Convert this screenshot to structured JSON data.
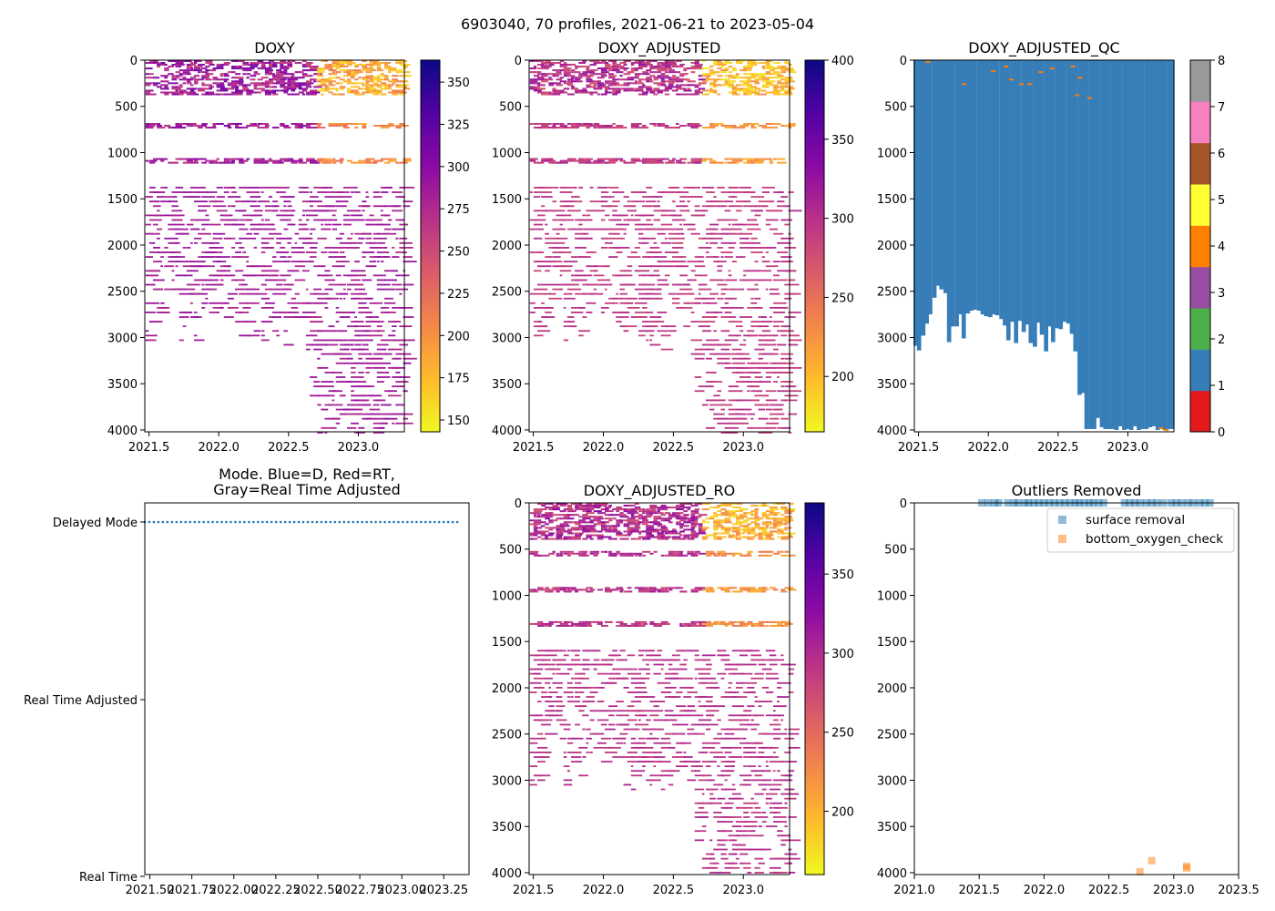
{
  "figure": {
    "suptitle": "6903040, 70 profiles, 2021-06-21 to 2023-05-04"
  },
  "chart_data": [
    {
      "id": "doxy",
      "type": "heatmap",
      "title": "DOXY",
      "colormap": "plasma_r",
      "xlim": [
        2021.47,
        2023.33
      ],
      "ylim": [
        4020,
        0
      ],
      "xticks": [
        2021.5,
        2022.0,
        2022.5,
        2023.0
      ],
      "xtick_labels": [
        "2021.5",
        "2022.0",
        "2022.5",
        "2023.0"
      ],
      "yticks": [
        0,
        500,
        1000,
        1500,
        2000,
        2500,
        3000,
        3500,
        4000
      ],
      "ytick_labels": [
        "0",
        "500",
        "1000",
        "1500",
        "2000",
        "2500",
        "3000",
        "3500",
        "4000"
      ],
      "colorbar": {
        "vmin": 143,
        "vmax": 363,
        "ticks": [
          150,
          175,
          200,
          225,
          250,
          275,
          300,
          325,
          350
        ],
        "tick_labels": [
          "150",
          "175",
          "200",
          "225",
          "250",
          "275",
          "300",
          "325",
          "350"
        ]
      },
      "data_summary": {
        "dense_layers_m": [
          [
            0,
            380
          ],
          [
            680,
            740
          ],
          [
            1060,
            1120
          ]
        ],
        "surface_value_early": 285,
        "surface_value_late": 185,
        "deep_value": 285
      }
    },
    {
      "id": "doxy_adjusted",
      "type": "heatmap",
      "title": "DOXY_ADJUSTED",
      "colormap": "plasma_r",
      "xlim": [
        2021.47,
        2023.33
      ],
      "ylim": [
        4020,
        0
      ],
      "xticks": [
        2021.5,
        2022.0,
        2022.5,
        2023.0
      ],
      "xtick_labels": [
        "2021.5",
        "2022.0",
        "2022.5",
        "2023.0"
      ],
      "yticks": [
        0,
        500,
        1000,
        1500,
        2000,
        2500,
        3000,
        3500,
        4000
      ],
      "ytick_labels": [
        "0",
        "500",
        "1000",
        "1500",
        "2000",
        "2500",
        "3000",
        "3500",
        "4000"
      ],
      "colorbar": {
        "vmin": 165,
        "vmax": 400,
        "ticks": [
          200,
          250,
          300,
          350,
          400
        ],
        "tick_labels": [
          "200",
          "250",
          "300",
          "350",
          "400"
        ]
      },
      "data_summary": {
        "dense_layers_m": [
          [
            0,
            380
          ],
          [
            680,
            740
          ],
          [
            1060,
            1120
          ]
        ],
        "surface_value_early": 300,
        "surface_value_late": 200,
        "deep_value": 295
      }
    },
    {
      "id": "doxy_adjusted_qc",
      "type": "heatmap",
      "title": "DOXY_ADJUSTED_QC",
      "colormap": "Set1 (categorical QC flags 0-8)",
      "xlim": [
        2021.47,
        2023.33
      ],
      "ylim": [
        4020,
        0
      ],
      "xticks": [
        2021.5,
        2022.0,
        2022.5,
        2023.0
      ],
      "xtick_labels": [
        "2021.5",
        "2022.0",
        "2022.5",
        "2023.0"
      ],
      "yticks": [
        0,
        500,
        1000,
        1500,
        2000,
        2500,
        3000,
        3500,
        4000
      ],
      "ytick_labels": [
        "0",
        "500",
        "1000",
        "1500",
        "2000",
        "2500",
        "3000",
        "3500",
        "4000"
      ],
      "colorbar": {
        "vmin": 0,
        "vmax": 8,
        "ticks": [
          0,
          1,
          2,
          3,
          4,
          5,
          6,
          7,
          8
        ],
        "tick_labels": [
          "0",
          "1",
          "2",
          "3",
          "4",
          "5",
          "6",
          "7",
          "8"
        ],
        "colors": [
          "#e41a1c",
          "#377eb8",
          "#4daf4a",
          "#984ea3",
          "#ff7f00",
          "#ffff33",
          "#a65628",
          "#f781bf",
          "#999999"
        ]
      },
      "profile_times": [
        2021.475,
        2021.5,
        2021.53,
        2021.555,
        2021.58,
        2021.61,
        2021.635,
        2021.66,
        2021.69,
        2021.715,
        2021.74,
        2021.77,
        2021.795,
        2021.82,
        2021.85,
        2021.875,
        2021.9,
        2021.93,
        2021.955,
        2021.98,
        2022.01,
        2022.035,
        2022.06,
        2022.09,
        2022.115,
        2022.14,
        2022.17,
        2022.195,
        2022.22,
        2022.25,
        2022.275,
        2022.3,
        2022.33,
        2022.355,
        2022.38,
        2022.41,
        2022.435,
        2022.46,
        2022.49,
        2022.515,
        2022.54,
        2022.57,
        2022.595,
        2022.62,
        2022.65,
        2022.675,
        2022.7,
        2022.73,
        2022.755,
        2022.78,
        2022.81,
        2022.835,
        2022.86,
        2022.89,
        2022.915,
        2022.94,
        2022.97,
        2022.995,
        2023.02,
        2023.05,
        2023.075,
        2023.1,
        2023.13,
        2023.155,
        2023.18,
        2023.21,
        2023.235,
        2023.26,
        2023.29,
        2023.315
      ],
      "profile_max_depth": [
        3090,
        3140,
        2980,
        2850,
        2750,
        2570,
        2440,
        2480,
        2520,
        3050,
        2880,
        2880,
        2750,
        3010,
        2740,
        2710,
        2700,
        2710,
        2750,
        2770,
        2780,
        2750,
        2760,
        2800,
        2870,
        3030,
        2830,
        3060,
        2820,
        2940,
        2860,
        3060,
        3100,
        2840,
        2970,
        3150,
        2880,
        3050,
        2900,
        2910,
        2830,
        2850,
        2960,
        3150,
        3620,
        3600,
        3990,
        3990,
        3990,
        3870,
        3970,
        3990,
        3990,
        3990,
        4000,
        3960,
        4000,
        3990,
        4000,
        3960,
        4000,
        3990,
        3990,
        3970,
        3960,
        4000,
        3990,
        4000,
        3990,
        3990
      ],
      "scattered_flag4_points": [
        [
          2021.55,
          10
        ],
        [
          2022.02,
          110
        ],
        [
          2022.11,
          60
        ],
        [
          2022.15,
          200
        ],
        [
          2022.22,
          250
        ],
        [
          2022.28,
          250
        ],
        [
          2022.36,
          120
        ],
        [
          2022.44,
          80
        ],
        [
          2022.59,
          60
        ],
        [
          2022.64,
          180
        ],
        [
          2021.81,
          250
        ],
        [
          2022.62,
          370
        ],
        [
          2022.71,
          400
        ],
        [
          2023.22,
          3970
        ],
        [
          2023.26,
          3990
        ]
      ]
    },
    {
      "id": "mode",
      "type": "scatter",
      "title_lines": [
        "Mode. Blue=D, Red=RT,",
        "Gray=Real Time Adjusted"
      ],
      "xlim": [
        2021.47,
        2023.4
      ],
      "xticks": [
        2021.5,
        2021.75,
        2022.0,
        2022.25,
        2022.5,
        2022.75,
        2023.0,
        2023.25
      ],
      "xtick_labels": [
        "2021.50",
        "2021.75",
        "2022.00",
        "2022.25",
        "2022.50",
        "2022.75",
        "2023.00",
        "2023.25"
      ],
      "categories": [
        "Delayed Mode",
        "Real Time Adjusted",
        "Real Time"
      ],
      "values_note": "all 70 profiles in Delayed Mode",
      "x": {
        "start": 2021.47,
        "end": 2023.33,
        "count": 70
      },
      "point_color": "#1f77b4"
    },
    {
      "id": "doxy_adjusted_ro",
      "type": "heatmap",
      "title": "DOXY_ADJUSTED_RO",
      "colormap": "plasma_r",
      "xlim": [
        2021.47,
        2023.33
      ],
      "ylim": [
        4020,
        0
      ],
      "xticks": [
        2021.5,
        2022.0,
        2022.5,
        2023.0
      ],
      "xtick_labels": [
        "2021.5",
        "2022.0",
        "2022.5",
        "2023.0"
      ],
      "yticks": [
        0,
        500,
        1000,
        1500,
        2000,
        2500,
        3000,
        3500,
        4000
      ],
      "ytick_labels": [
        "0",
        "500",
        "1000",
        "1500",
        "2000",
        "2500",
        "3000",
        "3500",
        "4000"
      ],
      "colorbar": {
        "vmin": 160,
        "vmax": 395,
        "ticks": [
          200,
          250,
          300,
          350
        ],
        "tick_labels": [
          "200",
          "250",
          "300",
          "350"
        ]
      },
      "data_summary": {
        "dense_layers_m": [
          [
            0,
            400
          ],
          [
            520,
            580
          ],
          [
            910,
            960
          ],
          [
            1280,
            1340
          ]
        ],
        "surface_value_early": 300,
        "surface_value_late": 200,
        "deep_value": 295
      }
    },
    {
      "id": "outliers",
      "type": "scatter",
      "title": "Outliers Removed",
      "xlim": [
        2021.0,
        2023.5
      ],
      "ylim": [
        4020,
        0
      ],
      "xticks": [
        2021.0,
        2021.5,
        2022.0,
        2022.5,
        2023.0,
        2023.5
      ],
      "xtick_labels": [
        "2021.0",
        "2021.5",
        "2022.0",
        "2022.5",
        "2023.0",
        "2023.5"
      ],
      "yticks": [
        0,
        500,
        1000,
        1500,
        2000,
        2500,
        3000,
        3500,
        4000
      ],
      "ytick_labels": [
        "0",
        "500",
        "1000",
        "1500",
        "2000",
        "2500",
        "3000",
        "3500",
        "4000"
      ],
      "legend": {
        "placement": "upper right"
      },
      "series": [
        {
          "name": "surface removal",
          "color": "#1f77b4",
          "x": [
            2021.52,
            2021.57,
            2021.62,
            2021.65,
            2021.72,
            2021.77,
            2021.8,
            2021.85,
            2021.88,
            2021.92,
            2021.96,
            2022.0,
            2022.04,
            2022.08,
            2022.12,
            2022.16,
            2022.2,
            2022.24,
            2022.27,
            2022.31,
            2022.35,
            2022.38,
            2022.42,
            2022.46,
            2022.62,
            2022.66,
            2022.7,
            2022.74,
            2022.79,
            2022.83,
            2022.87,
            2022.92,
            2022.98,
            2023.02,
            2023.06,
            2023.11,
            2023.15,
            2023.2,
            2023.24,
            2023.28
          ],
          "y": [
            0,
            0,
            0,
            0,
            0,
            0,
            0,
            0,
            0,
            0,
            0,
            0,
            0,
            0,
            0,
            0,
            0,
            0,
            0,
            0,
            0,
            0,
            0,
            0,
            0,
            0,
            0,
            0,
            0,
            0,
            0,
            0,
            0,
            0,
            0,
            0,
            0,
            0,
            0,
            0
          ]
        },
        {
          "name": "bottom_oxygen_check",
          "color": "#ff7f0e",
          "x": [
            2022.74,
            2022.83,
            2023.1,
            2023.1
          ],
          "y": [
            3990,
            3870,
            3930,
            3950
          ]
        }
      ]
    }
  ]
}
